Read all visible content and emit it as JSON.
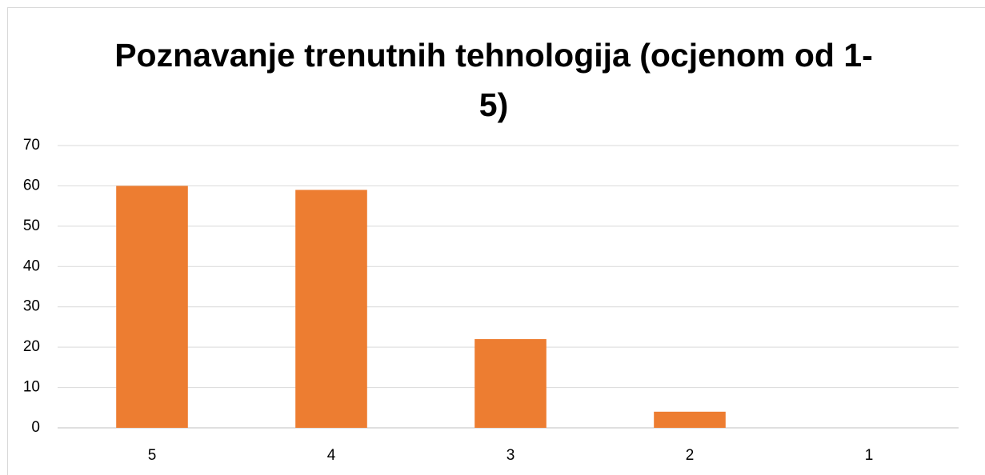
{
  "chart_data": {
    "type": "bar",
    "title": "Poznavanje trenutnih tehnologija (ocjenom od 1-5)",
    "categories": [
      "5",
      "4",
      "3",
      "2",
      "1"
    ],
    "values": [
      60,
      59,
      22,
      4,
      0
    ],
    "color": "#ed7d31",
    "ylim": [
      0,
      70
    ],
    "yticks": [
      0,
      10,
      20,
      30,
      40,
      50,
      60,
      70
    ],
    "grid": true
  }
}
